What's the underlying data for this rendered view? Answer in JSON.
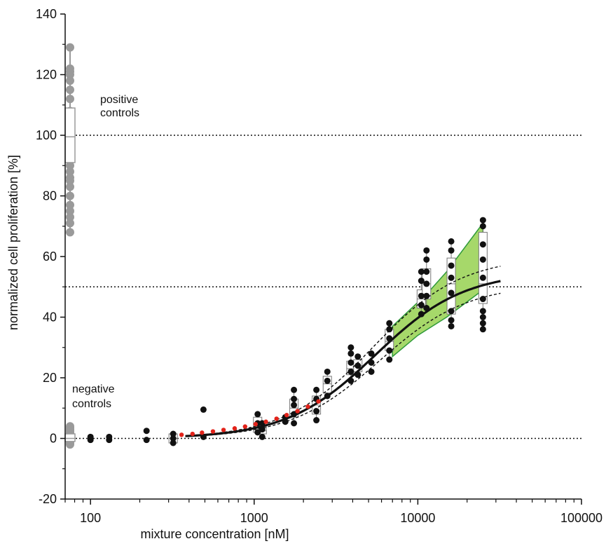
{
  "chart_data": {
    "type": "scatter",
    "xlabel": "mixture concentration [nM]",
    "ylabel": "normalized cell proliferation [%]",
    "xscale": "log",
    "xlim": [
      70,
      100000
    ],
    "ylim": [
      -20,
      140
    ],
    "x_ticks": [
      {
        "value": 100,
        "label": "100"
      },
      {
        "value": 1000,
        "label": "1000"
      },
      {
        "value": 10000,
        "label": "10000"
      },
      {
        "value": 100000,
        "label": "100000"
      }
    ],
    "y_ticks": [
      {
        "value": -20,
        "label": "-20"
      },
      {
        "value": 0,
        "label": "0"
      },
      {
        "value": 20,
        "label": "20"
      },
      {
        "value": 40,
        "label": "40"
      },
      {
        "value": 60,
        "label": "60"
      },
      {
        "value": 80,
        "label": "80"
      },
      {
        "value": 100,
        "label": "100"
      },
      {
        "value": 120,
        "label": "120"
      },
      {
        "value": 140,
        "label": "140"
      }
    ],
    "reference_lines": [
      0,
      50,
      100
    ],
    "annotations": [
      {
        "text_lines": [
          "positive",
          "controls"
        ],
        "x": 95,
        "y": 108
      },
      {
        "text_lines": [
          "negative",
          "controls"
        ],
        "x": 80,
        "y": 16
      }
    ],
    "positive_controls": {
      "x": 75,
      "box": {
        "q1": 91,
        "median": 99.5,
        "q3": 109,
        "whisker_low": 68,
        "whisker_high": 129
      },
      "points": [
        68,
        71,
        73,
        75,
        77,
        80,
        83,
        85,
        86,
        88,
        90,
        92,
        94,
        108,
        112,
        115,
        118,
        120,
        121,
        122,
        129
      ]
    },
    "negative_controls": {
      "x": 75,
      "box": {
        "q1": -1,
        "median": 0,
        "q3": 1.5,
        "whisker_low": -2,
        "whisker_high": 4
      },
      "points": [
        -2,
        -1.5,
        -1,
        -0.5,
        0,
        0.5,
        1,
        1.5,
        2,
        2.5,
        3,
        3.5,
        4
      ]
    },
    "observations": [
      {
        "x": 100,
        "y": [
          -0.5,
          0.5
        ]
      },
      {
        "x": 130,
        "y": [
          -0.5,
          0.5
        ]
      },
      {
        "x": 220,
        "y": [
          -0.5,
          2.5
        ]
      },
      {
        "x": 320,
        "y": [
          -1.5,
          0,
          1.5
        ]
      },
      {
        "x": 490,
        "y": [
          0.5,
          9.5
        ]
      },
      {
        "x": 1050,
        "y": [
          2,
          5,
          8
        ]
      },
      {
        "x": 1120,
        "y": [
          0.5,
          3,
          5
        ]
      },
      {
        "x": 1550,
        "y": [
          5.5,
          7
        ]
      },
      {
        "x": 1750,
        "y": [
          5,
          8,
          11,
          13,
          16
        ]
      },
      {
        "x": 2400,
        "y": [
          6,
          9,
          13,
          16
        ]
      },
      {
        "x": 2800,
        "y": [
          14,
          19,
          22
        ]
      },
      {
        "x": 3900,
        "y": [
          19,
          22,
          25,
          28,
          30
        ]
      },
      {
        "x": 4300,
        "y": [
          21,
          24,
          27
        ]
      },
      {
        "x": 5200,
        "y": [
          22,
          25,
          28
        ]
      },
      {
        "x": 6700,
        "y": [
          26,
          29,
          33,
          36,
          38
        ]
      },
      {
        "x": 10500,
        "y": [
          41,
          44,
          47,
          52,
          55
        ]
      },
      {
        "x": 11300,
        "y": [
          43,
          47,
          51,
          55,
          59,
          62
        ]
      },
      {
        "x": 16000,
        "y": [
          37,
          39,
          42,
          48,
          53,
          57,
          62,
          65
        ]
      },
      {
        "x": 25000,
        "y": [
          36,
          38,
          40,
          42,
          46,
          53,
          59,
          64,
          70,
          72
        ]
      }
    ],
    "boxes": [
      {
        "x": 320,
        "q1": -1.5,
        "median": 0,
        "q3": 1.5,
        "whisker_low": -1.5,
        "whisker_high": 1.5
      },
      {
        "x": 1050,
        "q1": 2,
        "median": 4.5,
        "q3": 7,
        "whisker_low": 1,
        "whisker_high": 8
      },
      {
        "x": 1120,
        "q1": 1.5,
        "median": 2.5,
        "q3": 4,
        "whisker_low": 0.5,
        "whisker_high": 5
      },
      {
        "x": 1750,
        "q1": 7,
        "median": 10,
        "q3": 13,
        "whisker_low": 5,
        "whisker_high": 16
      },
      {
        "x": 2400,
        "q1": 8,
        "median": 11,
        "q3": 14,
        "whisker_low": 6,
        "whisker_high": 16
      },
      {
        "x": 2800,
        "q1": 15,
        "median": 18,
        "q3": 20.5,
        "whisker_low": 14,
        "whisker_high": 22
      },
      {
        "x": 3900,
        "q1": 21,
        "median": 23,
        "q3": 25.5,
        "whisker_low": 19,
        "whisker_high": 30
      },
      {
        "x": 4300,
        "q1": 22,
        "median": 24,
        "q3": 26,
        "whisker_low": 21,
        "whisker_high": 27
      },
      {
        "x": 6700,
        "q1": 29,
        "median": 32,
        "q3": 36,
        "whisker_low": 26,
        "whisker_high": 38
      },
      {
        "x": 10500,
        "q1": 43,
        "median": 46,
        "q3": 49,
        "whisker_low": 41,
        "whisker_high": 55
      },
      {
        "x": 11300,
        "q1": 46,
        "median": 51,
        "q3": 56,
        "whisker_low": 43,
        "whisker_high": 62
      },
      {
        "x": 16000,
        "q1": 41,
        "median": 51,
        "q3": 59.5,
        "whisker_low": 37,
        "whisker_high": 65
      },
      {
        "x": 25000,
        "q1": 44.5,
        "median": 51,
        "q3": 68,
        "whisker_low": 36,
        "whisker_high": 72
      }
    ],
    "fit_curve": {
      "bottom": 0,
      "top": 55,
      "ec50": 5500,
      "hill": 1.6,
      "x_range": [
        380,
        32000
      ]
    },
    "confidence_band_upper": {
      "bottom": 0,
      "top": 60,
      "ec50": 5300,
      "hill": 1.6,
      "x_range": [
        380,
        32000
      ]
    },
    "confidence_band_lower": {
      "bottom": 0,
      "top": 51,
      "ec50": 5800,
      "hill": 1.6,
      "x_range": [
        380,
        32000
      ]
    },
    "prediction_band": {
      "upper": [
        [
          7000,
          37
        ],
        [
          11500,
          48
        ],
        [
          15000,
          55
        ],
        [
          25000,
          71
        ]
      ],
      "lower": [
        [
          7000,
          27
        ],
        [
          10000,
          34
        ],
        [
          15000,
          40
        ],
        [
          25000,
          49
        ]
      ]
    },
    "red_markers": {
      "x": [
        360,
        420,
        480,
        560,
        650,
        760,
        880,
        1020,
        1180,
        1370,
        1580,
        1840,
        2130,
        2470
      ],
      "y": [
        1.2,
        1.5,
        1.9,
        2.3,
        2.8,
        3.3,
        3.9,
        4.7,
        5.5,
        6.5,
        7.7,
        9.0,
        10.5,
        12.2
      ]
    },
    "colors": {
      "axis": "#111111",
      "control_gray": "#9a9a9a",
      "data_point": "#111111",
      "fit_curve": "#111111",
      "band_fill": "#a6d86a",
      "band_stroke": "#2f9a3a",
      "red_marker": "#e2231a",
      "box_stroke": "#777777"
    }
  }
}
